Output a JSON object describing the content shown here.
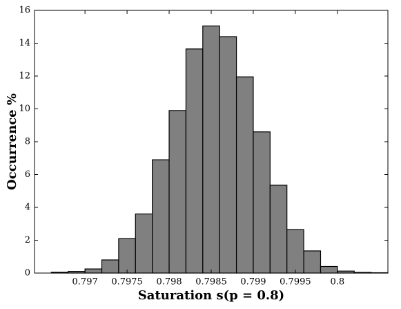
{
  "chart_data": {
    "type": "histogram",
    "x_label": "Saturation  s(p = 0.8)",
    "y_label": "Occurrence %",
    "bins": [
      0.7966,
      0.7968,
      0.797,
      0.7972,
      0.7974,
      0.7976,
      0.7978,
      0.798,
      0.7982,
      0.7984,
      0.7986,
      0.7988,
      0.799,
      0.7992,
      0.7994,
      0.7996,
      0.7998,
      0.8,
      0.8002,
      0.8004,
      0.8006
    ],
    "values": [
      0.05,
      0.1,
      0.25,
      0.8,
      2.1,
      3.6,
      6.9,
      9.9,
      13.65,
      15.05,
      14.4,
      11.95,
      8.6,
      5.35,
      2.65,
      1.35,
      0.4,
      0.12,
      0.04,
      0.02
    ],
    "color": "#808080",
    "xlim": [
      0.7964,
      0.8006
    ],
    "xticks": [
      0.797,
      0.7975,
      0.798,
      0.7985,
      0.799,
      0.7995,
      0.8
    ],
    "ylim": [
      0,
      16
    ],
    "yticks": [
      0,
      2,
      4,
      6,
      8,
      10,
      12,
      14,
      16
    ]
  }
}
